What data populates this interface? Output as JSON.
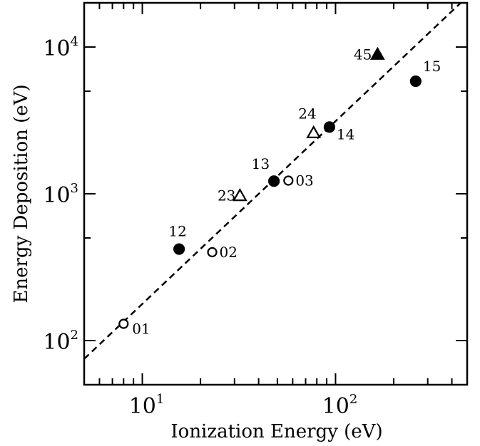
{
  "chart_data": {
    "type": "scatter",
    "xlabel": "Ionization Energy (eV)",
    "ylabel": "Energy Deposition (eV)",
    "x_scale": "log",
    "y_scale": "log",
    "xlim": [
      5,
      480
    ],
    "ylim": [
      50,
      20000
    ],
    "grid": false,
    "x_ticks": [
      {
        "value": 10,
        "base": "10",
        "exp": "1"
      },
      {
        "value": 100,
        "base": "10",
        "exp": "2"
      }
    ],
    "y_ticks": [
      {
        "value": 100,
        "base": "10",
        "exp": "2"
      },
      {
        "value": 1000,
        "base": "10",
        "exp": "3"
      },
      {
        "value": 10000,
        "base": "10",
        "exp": "4"
      }
    ],
    "points": [
      {
        "label": "01",
        "x": 8,
        "y": 130,
        "marker": "circle",
        "filled": false
      },
      {
        "label": "02",
        "x": 23,
        "y": 400,
        "marker": "circle",
        "filled": false
      },
      {
        "label": "03",
        "x": 57,
        "y": 1230,
        "marker": "circle",
        "filled": false
      },
      {
        "label": "12",
        "x": 15.5,
        "y": 420,
        "marker": "circle",
        "filled": true
      },
      {
        "label": "13",
        "x": 48,
        "y": 1220,
        "marker": "circle",
        "filled": true
      },
      {
        "label": "14",
        "x": 93,
        "y": 2850,
        "marker": "circle",
        "filled": true
      },
      {
        "label": "15",
        "x": 260,
        "y": 5850,
        "marker": "circle",
        "filled": true
      },
      {
        "label": "23",
        "x": 32,
        "y": 970,
        "marker": "triangle",
        "filled": false
      },
      {
        "label": "24",
        "x": 77,
        "y": 2600,
        "marker": "triangle",
        "filled": false
      },
      {
        "label": "45",
        "x": 165,
        "y": 8900,
        "marker": "triangle",
        "filled": true
      }
    ],
    "fit_line": {
      "style": "dashed",
      "x": [
        5,
        480
      ],
      "y": [
        75,
        22000
      ]
    },
    "colors": {
      "markers": "#000000",
      "axes": "#000000",
      "background": "#ffffff"
    }
  }
}
